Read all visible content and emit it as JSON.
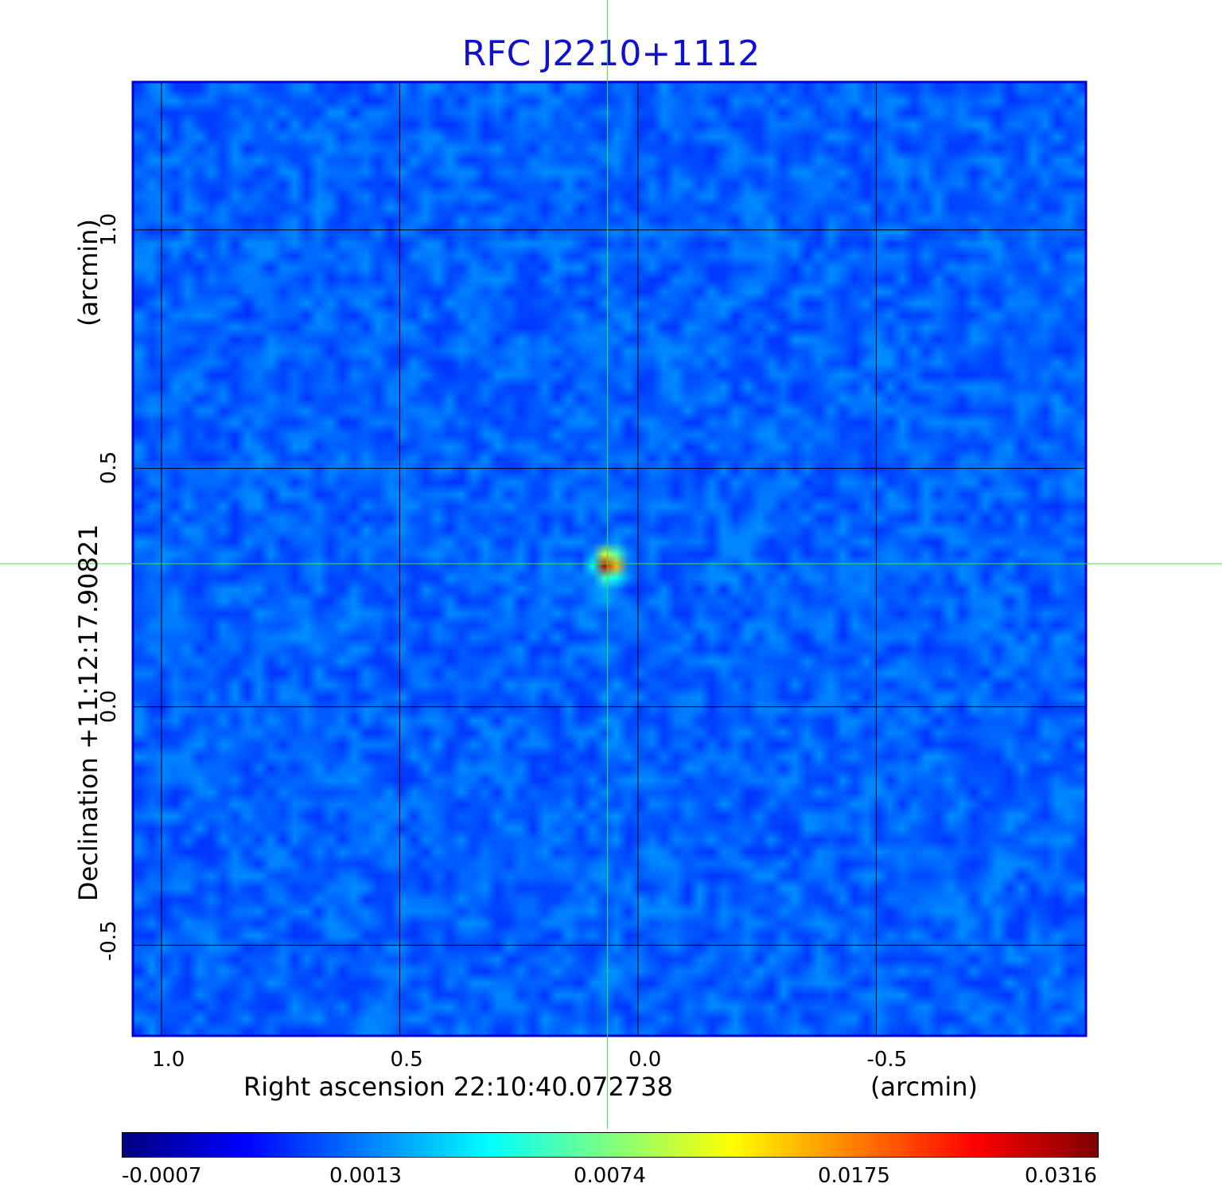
{
  "chart_data": {
    "type": "heatmap",
    "title": "RFC J2210+1112",
    "xlabel": "Right ascension  22:10:40.072738",
    "xunit": "(arcmin)",
    "ylabel": "Declination  +11:12:17.90821",
    "yunit": "(arcmin)",
    "x_ticks": [
      "1.0",
      "0.5",
      "0.0",
      "-0.5"
    ],
    "y_ticks": [
      "1.0",
      "0.5",
      "0.0",
      "-0.5"
    ],
    "x_tick_values": [
      1.0,
      0.5,
      0.0,
      -0.5
    ],
    "y_tick_values": [
      1.0,
      0.5,
      0.0,
      -0.5
    ],
    "xlim": [
      1.06,
      -0.94
    ],
    "ylim": [
      -0.69,
      1.31
    ],
    "grid": true,
    "crosshair": {
      "x": 0.064,
      "y": 0.3
    },
    "source": {
      "x": 0.064,
      "y": 0.3,
      "peak": 0.0316
    },
    "colorbar": {
      "colormap": "jet",
      "scale": "nonlinear",
      "ticks": [
        "-0.0007",
        "0.0013",
        "0.0074",
        "0.0175",
        "0.0316"
      ],
      "range": [
        -0.0007,
        0.0316
      ]
    }
  },
  "colors": {
    "title": "#1010d0",
    "frame": "#0000d0",
    "crosshair": "#40e040",
    "grid": "#000000"
  }
}
